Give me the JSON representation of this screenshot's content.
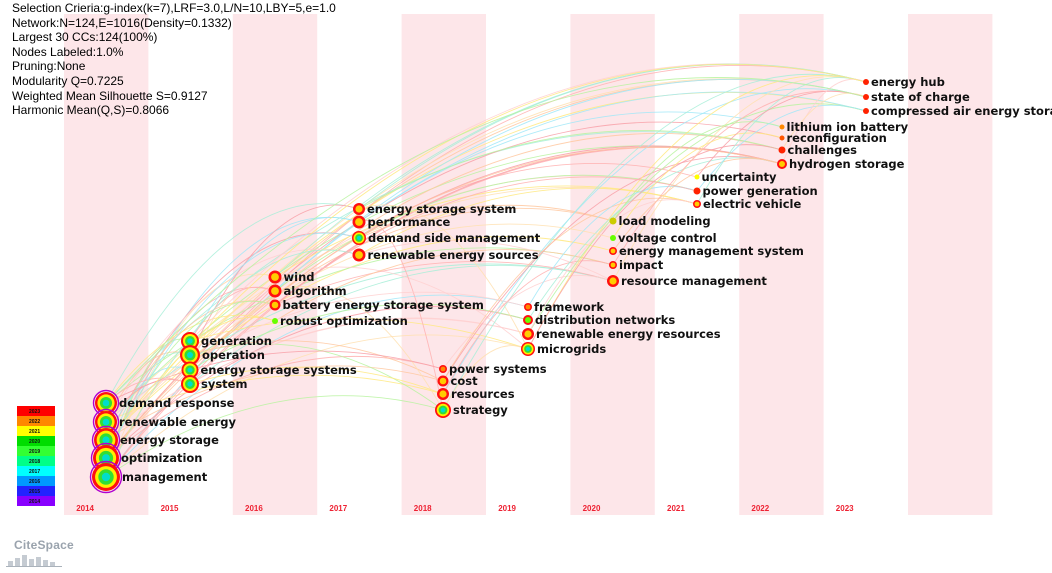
{
  "stats": [
    "Selection Crieria:g-index(k=7),LRF=3.0,L/N=10,LBY=5,e=1.0",
    "Network:N=124,E=1016(Density=0.1332)",
    "Largest 30 CCs:124(100%)",
    "Nodes Labeled:1.0%",
    "Pruning:None",
    "Modularity Q=0.7225",
    "Weighted Mean Silhouette S=0.9127",
    "Harmonic Mean(Q,S)=0.8066"
  ],
  "years": [
    "2014",
    "2015",
    "2016",
    "2017",
    "2018",
    "2019",
    "2020",
    "2021",
    "2022",
    "2023"
  ],
  "legend": [
    {
      "label": "2023",
      "color": "#ff0000"
    },
    {
      "label": "2022",
      "color": "#ff8800"
    },
    {
      "label": "2021",
      "color": "#ffff00"
    },
    {
      "label": "2020",
      "color": "#00dd00"
    },
    {
      "label": "2019",
      "color": "#33ff33"
    },
    {
      "label": "2018",
      "color": "#00ff88"
    },
    {
      "label": "2017",
      "color": "#00ffff"
    },
    {
      "label": "2016",
      "color": "#0099ff"
    },
    {
      "label": "2015",
      "color": "#2222ff"
    },
    {
      "label": "2014",
      "color": "#8800ff"
    }
  ],
  "nodes": [
    {
      "id": "energy-hub",
      "label": "energy hub",
      "year": "2023",
      "color": "#ff2200"
    },
    {
      "id": "state-of-charge",
      "label": "state of charge",
      "year": "2023",
      "color": "#ff2200"
    },
    {
      "id": "compressed-air-energy-storage",
      "label": "compressed air energy storage",
      "year": "2023",
      "color": "#ff2200"
    },
    {
      "id": "lithium-ion-battery",
      "label": "lithium ion battery",
      "year": "2022",
      "color": "#ff8800"
    },
    {
      "id": "reconfiguration",
      "label": "reconfiguration",
      "year": "2022",
      "color": "#ff5500"
    },
    {
      "id": "challenges",
      "label": "challenges",
      "year": "2022",
      "color": "#ff2200"
    },
    {
      "id": "hydrogen-storage",
      "label": "hydrogen storage",
      "year": "2022",
      "color": "#ff2200"
    },
    {
      "id": "uncertainty",
      "label": "uncertainty",
      "year": "2021",
      "color": "#ffff00"
    },
    {
      "id": "power-generation",
      "label": "power generation",
      "year": "2021",
      "color": "#ff2200"
    },
    {
      "id": "electric-vehicle",
      "label": "electric vehicle",
      "year": "2021",
      "color": "#ff2200"
    },
    {
      "id": "load-modeling",
      "label": "load modeling",
      "year": "2020",
      "color": "#cccc00"
    },
    {
      "id": "voltage-control",
      "label": "voltage control",
      "year": "2020",
      "color": "#66ff00"
    },
    {
      "id": "energy-management-system",
      "label": "energy management system",
      "year": "2020",
      "color": "#ffcc00"
    },
    {
      "id": "impact",
      "label": "impact",
      "year": "2020",
      "color": "#ff2200"
    },
    {
      "id": "resource-management",
      "label": "resource management",
      "year": "2020",
      "color": "#ff2200"
    },
    {
      "id": "framework",
      "label": "framework",
      "year": "2019",
      "color": "#ff8800"
    },
    {
      "id": "distribution-networks",
      "label": "distribution networks",
      "year": "2019",
      "color": "#66ff00"
    },
    {
      "id": "renewable-energy-resources",
      "label": "renewable energy resources",
      "year": "2019",
      "color": "#ff2200"
    },
    {
      "id": "microgrids",
      "label": "microgrids",
      "year": "2019",
      "color": "#ff2200"
    },
    {
      "id": "power-systems",
      "label": "power systems",
      "year": "2018",
      "color": "#ff8800"
    },
    {
      "id": "cost",
      "label": "cost",
      "year": "2018",
      "color": "#ff2200"
    },
    {
      "id": "resources",
      "label": "resources",
      "year": "2018",
      "color": "#ff2200"
    },
    {
      "id": "strategy",
      "label": "strategy",
      "year": "2018",
      "color": "#ff2200"
    },
    {
      "id": "energy-storage-system",
      "label": "energy storage system",
      "year": "2017",
      "color": "#ff2200"
    },
    {
      "id": "performance",
      "label": "performance",
      "year": "2017",
      "color": "#ff2200"
    },
    {
      "id": "demand-side-management",
      "label": "demand side management",
      "year": "2017",
      "color": "#ff2200"
    },
    {
      "id": "renewable-energy-sources",
      "label": "renewable energy sources",
      "year": "2017",
      "color": "#ff2200"
    },
    {
      "id": "wind",
      "label": "wind",
      "year": "2016",
      "color": "#ff2200"
    },
    {
      "id": "algorithm",
      "label": "algorithm",
      "year": "2016",
      "color": "#ff2200"
    },
    {
      "id": "battery-energy-storage-system",
      "label": "battery energy storage system",
      "year": "2016",
      "color": "#ff2200"
    },
    {
      "id": "robust-optimization",
      "label": "robust optimization",
      "year": "2016",
      "color": "#66ff00"
    },
    {
      "id": "generation",
      "label": "generation",
      "year": "2015",
      "color": "#ff2200"
    },
    {
      "id": "operation",
      "label": "operation",
      "year": "2015",
      "color": "#ff2200"
    },
    {
      "id": "energy-storage-systems",
      "label": "energy storage systems",
      "year": "2015",
      "color": "#ff2200"
    },
    {
      "id": "system",
      "label": "system",
      "year": "2015",
      "color": "#ff2200"
    },
    {
      "id": "demand-response",
      "label": "demand response",
      "year": "2014",
      "color": "#ff2200"
    },
    {
      "id": "renewable-energy",
      "label": "renewable energy",
      "year": "2014",
      "color": "#ff2200"
    },
    {
      "id": "energy-storage",
      "label": "energy storage",
      "year": "2014",
      "color": "#ff2200"
    },
    {
      "id": "optimization",
      "label": "optimization",
      "year": "2014",
      "color": "#ff2200"
    },
    {
      "id": "management",
      "label": "management",
      "year": "2014",
      "color": "#ff2200"
    }
  ],
  "logo": {
    "text": "CiteSpace"
  }
}
